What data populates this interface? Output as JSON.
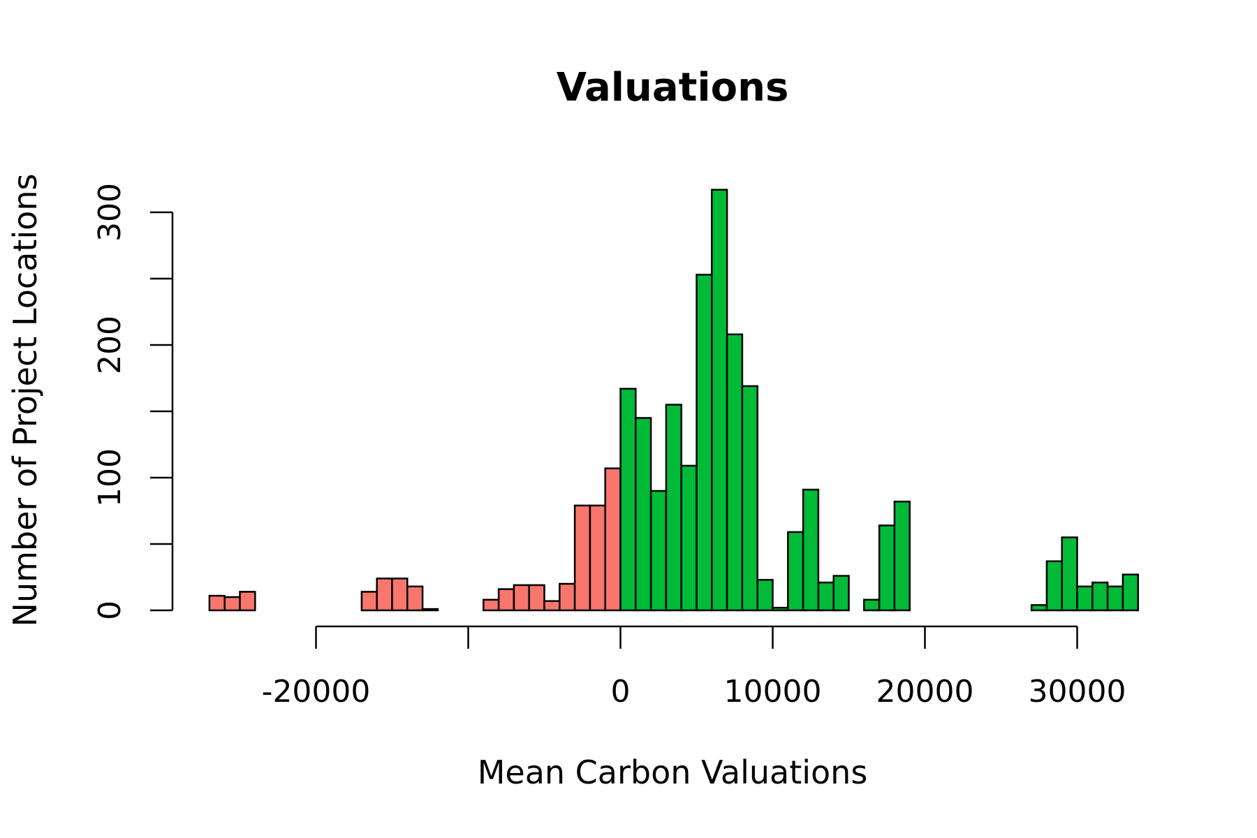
{
  "chart_data": {
    "type": "bar",
    "title": "Valuations",
    "xlabel": "Mean Carbon Valuations",
    "ylabel": "Number of Project Locations",
    "bin_width": 1000,
    "xlim": [
      -25000,
      34000
    ],
    "ylim": [
      0,
      320
    ],
    "x_ticks": [
      -20000,
      -10000,
      0,
      10000,
      20000,
      30000
    ],
    "x_tick_labels": [
      "-20000",
      "",
      "0",
      "10000",
      "20000",
      "30000"
    ],
    "y_ticks": [
      0,
      50,
      100,
      150,
      200,
      250,
      300
    ],
    "y_tick_labels": [
      "0",
      "",
      "100",
      "",
      "200",
      "",
      "300"
    ],
    "grid": false,
    "legend": "none",
    "colors": {
      "negative": "#F8766D",
      "positive": "#00BA38",
      "border": "#000000"
    },
    "bin_starts": [
      -27000,
      -26000,
      -25000,
      -24000,
      -23000,
      -22000,
      -21000,
      -20000,
      -19000,
      -18000,
      -17000,
      -16000,
      -15000,
      -14000,
      -13000,
      -12000,
      -11000,
      -10000,
      -9000,
      -8000,
      -7000,
      -6000,
      -5000,
      -4000,
      -3000,
      -2000,
      -1000,
      0,
      1000,
      2000,
      3000,
      4000,
      5000,
      6000,
      7000,
      8000,
      9000,
      10000,
      11000,
      12000,
      13000,
      14000,
      15000,
      16000,
      17000,
      18000,
      19000,
      20000,
      21000,
      22000,
      23000,
      24000,
      25000,
      26000,
      27000,
      28000,
      29000,
      30000,
      31000,
      32000,
      33000
    ],
    "values": [
      11,
      10,
      14,
      0,
      0,
      0,
      0,
      0,
      0,
      0,
      14,
      24,
      24,
      18,
      1,
      0,
      0,
      0,
      8,
      16,
      19,
      19,
      7,
      20,
      79,
      79,
      107,
      167,
      145,
      90,
      155,
      109,
      253,
      317,
      208,
      169,
      23,
      2,
      59,
      91,
      21,
      26,
      0,
      8,
      64,
      82,
      0,
      0,
      0,
      0,
      0,
      0,
      0,
      0,
      4,
      37,
      55,
      18,
      21,
      18,
      27
    ]
  }
}
